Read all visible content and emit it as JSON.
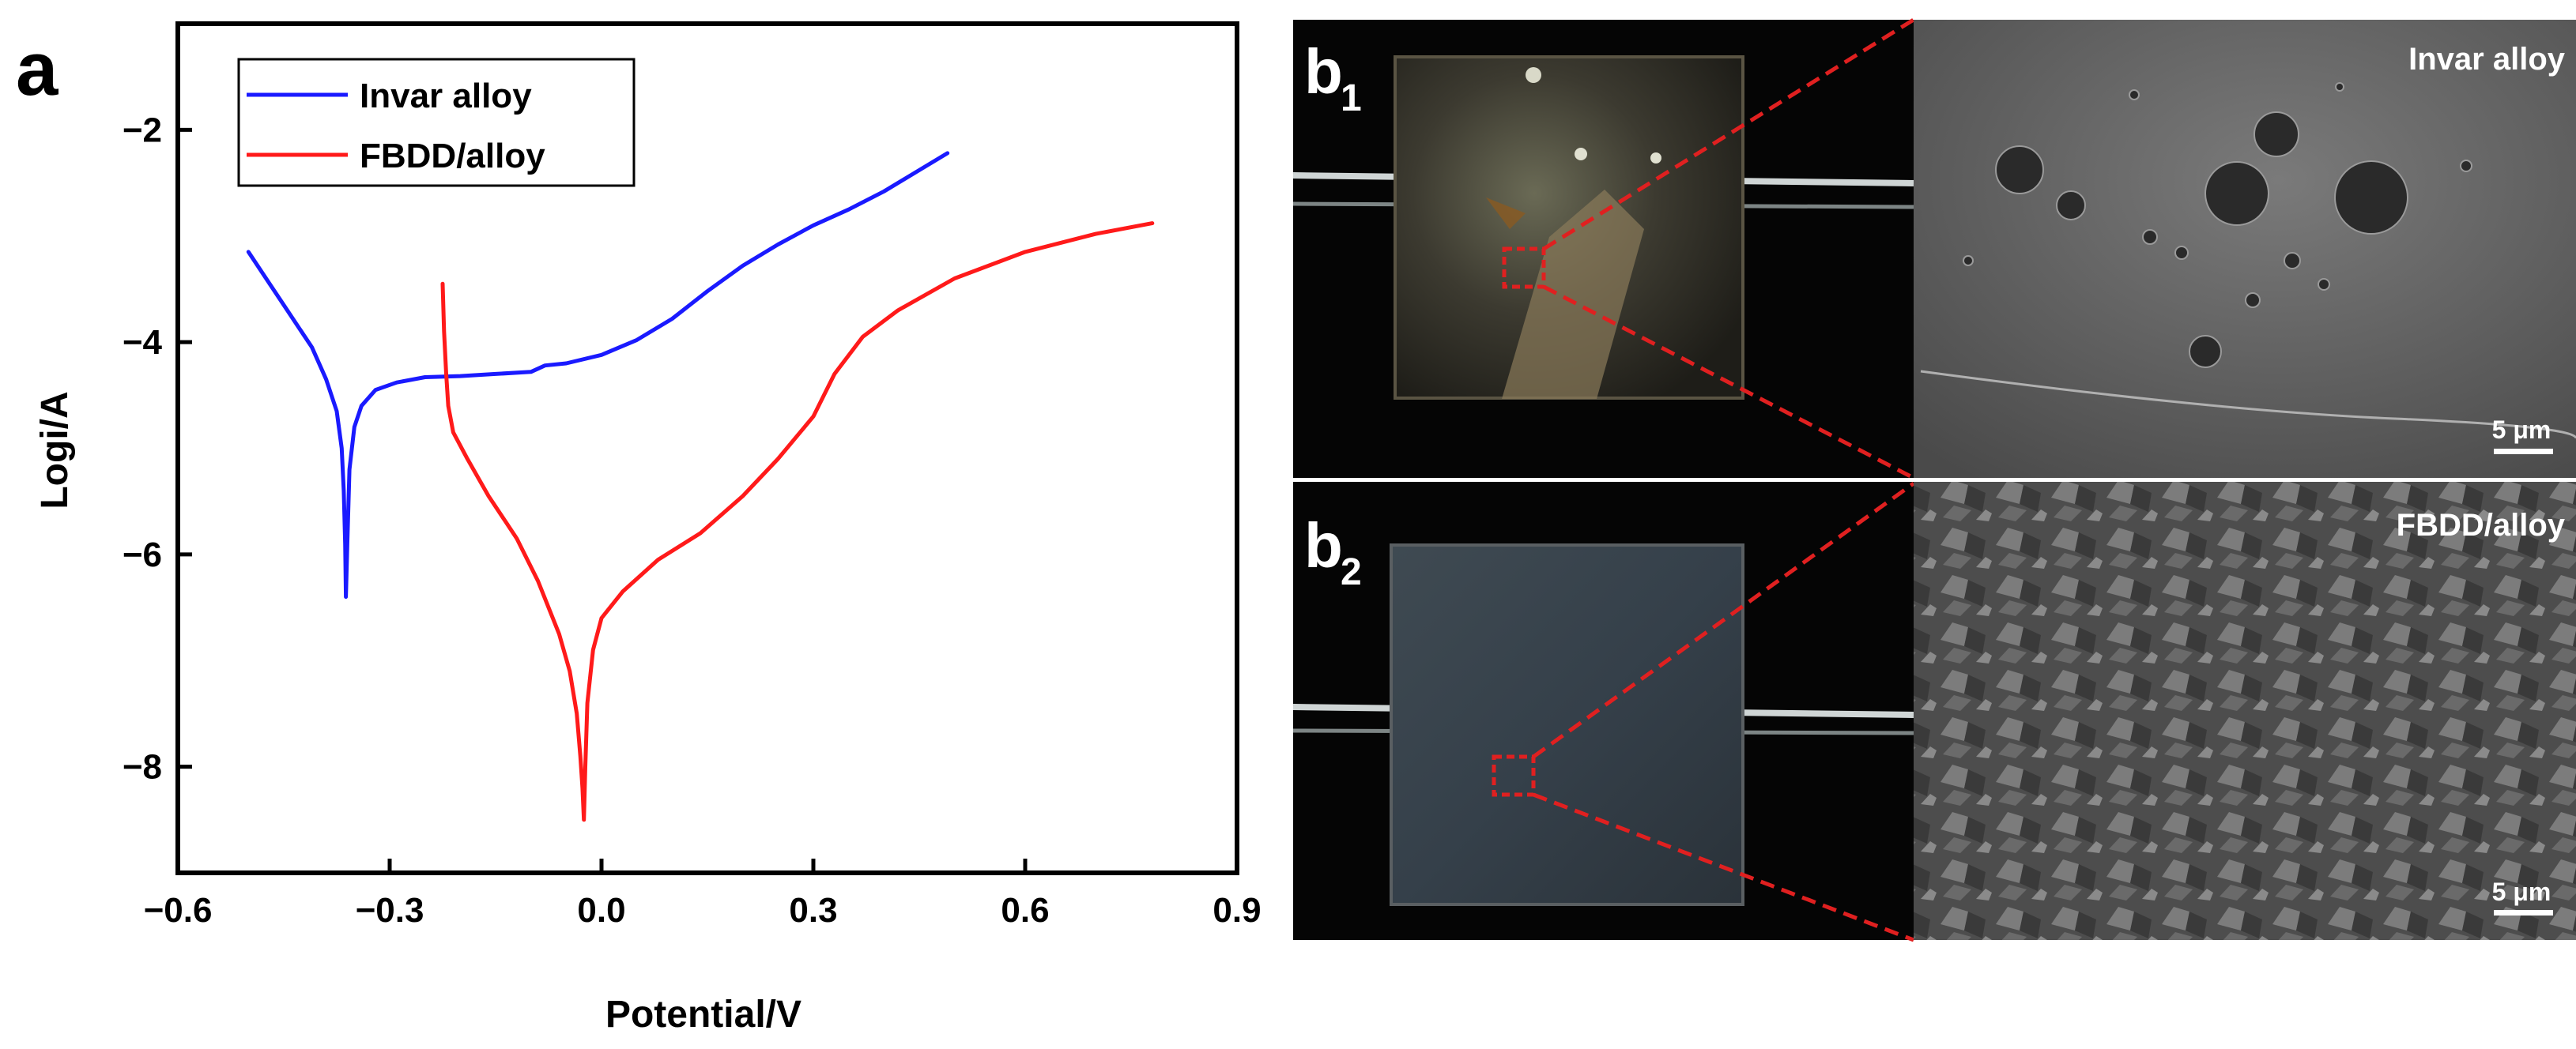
{
  "panel_a": {
    "letter": "a"
  },
  "chart_data": {
    "type": "line",
    "title": "",
    "xlabel": "Potential/V",
    "ylabel": "Logi/A",
    "xlim": [
      -0.6,
      0.9
    ],
    "ylim": [
      -9,
      -1
    ],
    "xticks": [
      -0.6,
      -0.3,
      0.0,
      0.3,
      0.6,
      0.9
    ],
    "xtick_labels": [
      "−0.6",
      "−0.3",
      "0.0",
      "0.3",
      "0.6",
      "0.9"
    ],
    "yticks": [
      -8,
      -6,
      -4,
      -2
    ],
    "ytick_labels": [
      "−8",
      "−6",
      "−4",
      "−2"
    ],
    "grid": false,
    "legend_position": "top-left",
    "series": [
      {
        "name": "Invar alloy",
        "color": "#1a1aff",
        "x": [
          -0.5,
          -0.47,
          -0.44,
          -0.41,
          -0.39,
          -0.375,
          -0.368,
          -0.365,
          -0.363,
          -0.362,
          -0.36,
          -0.357,
          -0.35,
          -0.34,
          -0.32,
          -0.29,
          -0.25,
          -0.2,
          -0.15,
          -0.1,
          -0.08,
          -0.05,
          0.0,
          0.05,
          0.1,
          0.15,
          0.2,
          0.25,
          0.3,
          0.35,
          0.4,
          0.45,
          0.49
        ],
        "y": [
          -3.15,
          -3.45,
          -3.75,
          -4.05,
          -4.35,
          -4.65,
          -5.0,
          -5.4,
          -5.9,
          -6.4,
          -5.9,
          -5.2,
          -4.8,
          -4.6,
          -4.45,
          -4.38,
          -4.33,
          -4.32,
          -4.3,
          -4.28,
          -4.22,
          -4.2,
          -4.12,
          -3.98,
          -3.78,
          -3.52,
          -3.28,
          -3.08,
          -2.9,
          -2.75,
          -2.58,
          -2.38,
          -2.22
        ]
      },
      {
        "name": "FBDD/alloy",
        "color": "#ff1a1a",
        "x": [
          -0.225,
          -0.223,
          -0.22,
          -0.217,
          -0.21,
          -0.19,
          -0.16,
          -0.12,
          -0.09,
          -0.06,
          -0.045,
          -0.035,
          -0.03,
          -0.027,
          -0.025,
          -0.023,
          -0.02,
          -0.012,
          0.0,
          0.03,
          0.08,
          0.14,
          0.2,
          0.25,
          0.3,
          0.33,
          0.37,
          0.42,
          0.5,
          0.6,
          0.7,
          0.78
        ],
        "y": [
          -3.45,
          -3.9,
          -4.3,
          -4.6,
          -4.85,
          -5.1,
          -5.45,
          -5.85,
          -6.25,
          -6.75,
          -7.1,
          -7.5,
          -7.9,
          -8.2,
          -8.5,
          -8.0,
          -7.4,
          -6.9,
          -6.6,
          -6.35,
          -6.05,
          -5.8,
          -5.45,
          -5.1,
          -4.7,
          -4.3,
          -3.95,
          -3.7,
          -3.4,
          -3.15,
          -2.98,
          -2.88
        ]
      }
    ]
  },
  "panel_b1": {
    "letter": "b",
    "index": "1",
    "sem_label": "Invar alloy",
    "scale_bar": "5 μm"
  },
  "panel_b2": {
    "letter": "b",
    "index": "2",
    "sem_label": "FBDD/alloy",
    "scale_bar": "5 μm"
  }
}
